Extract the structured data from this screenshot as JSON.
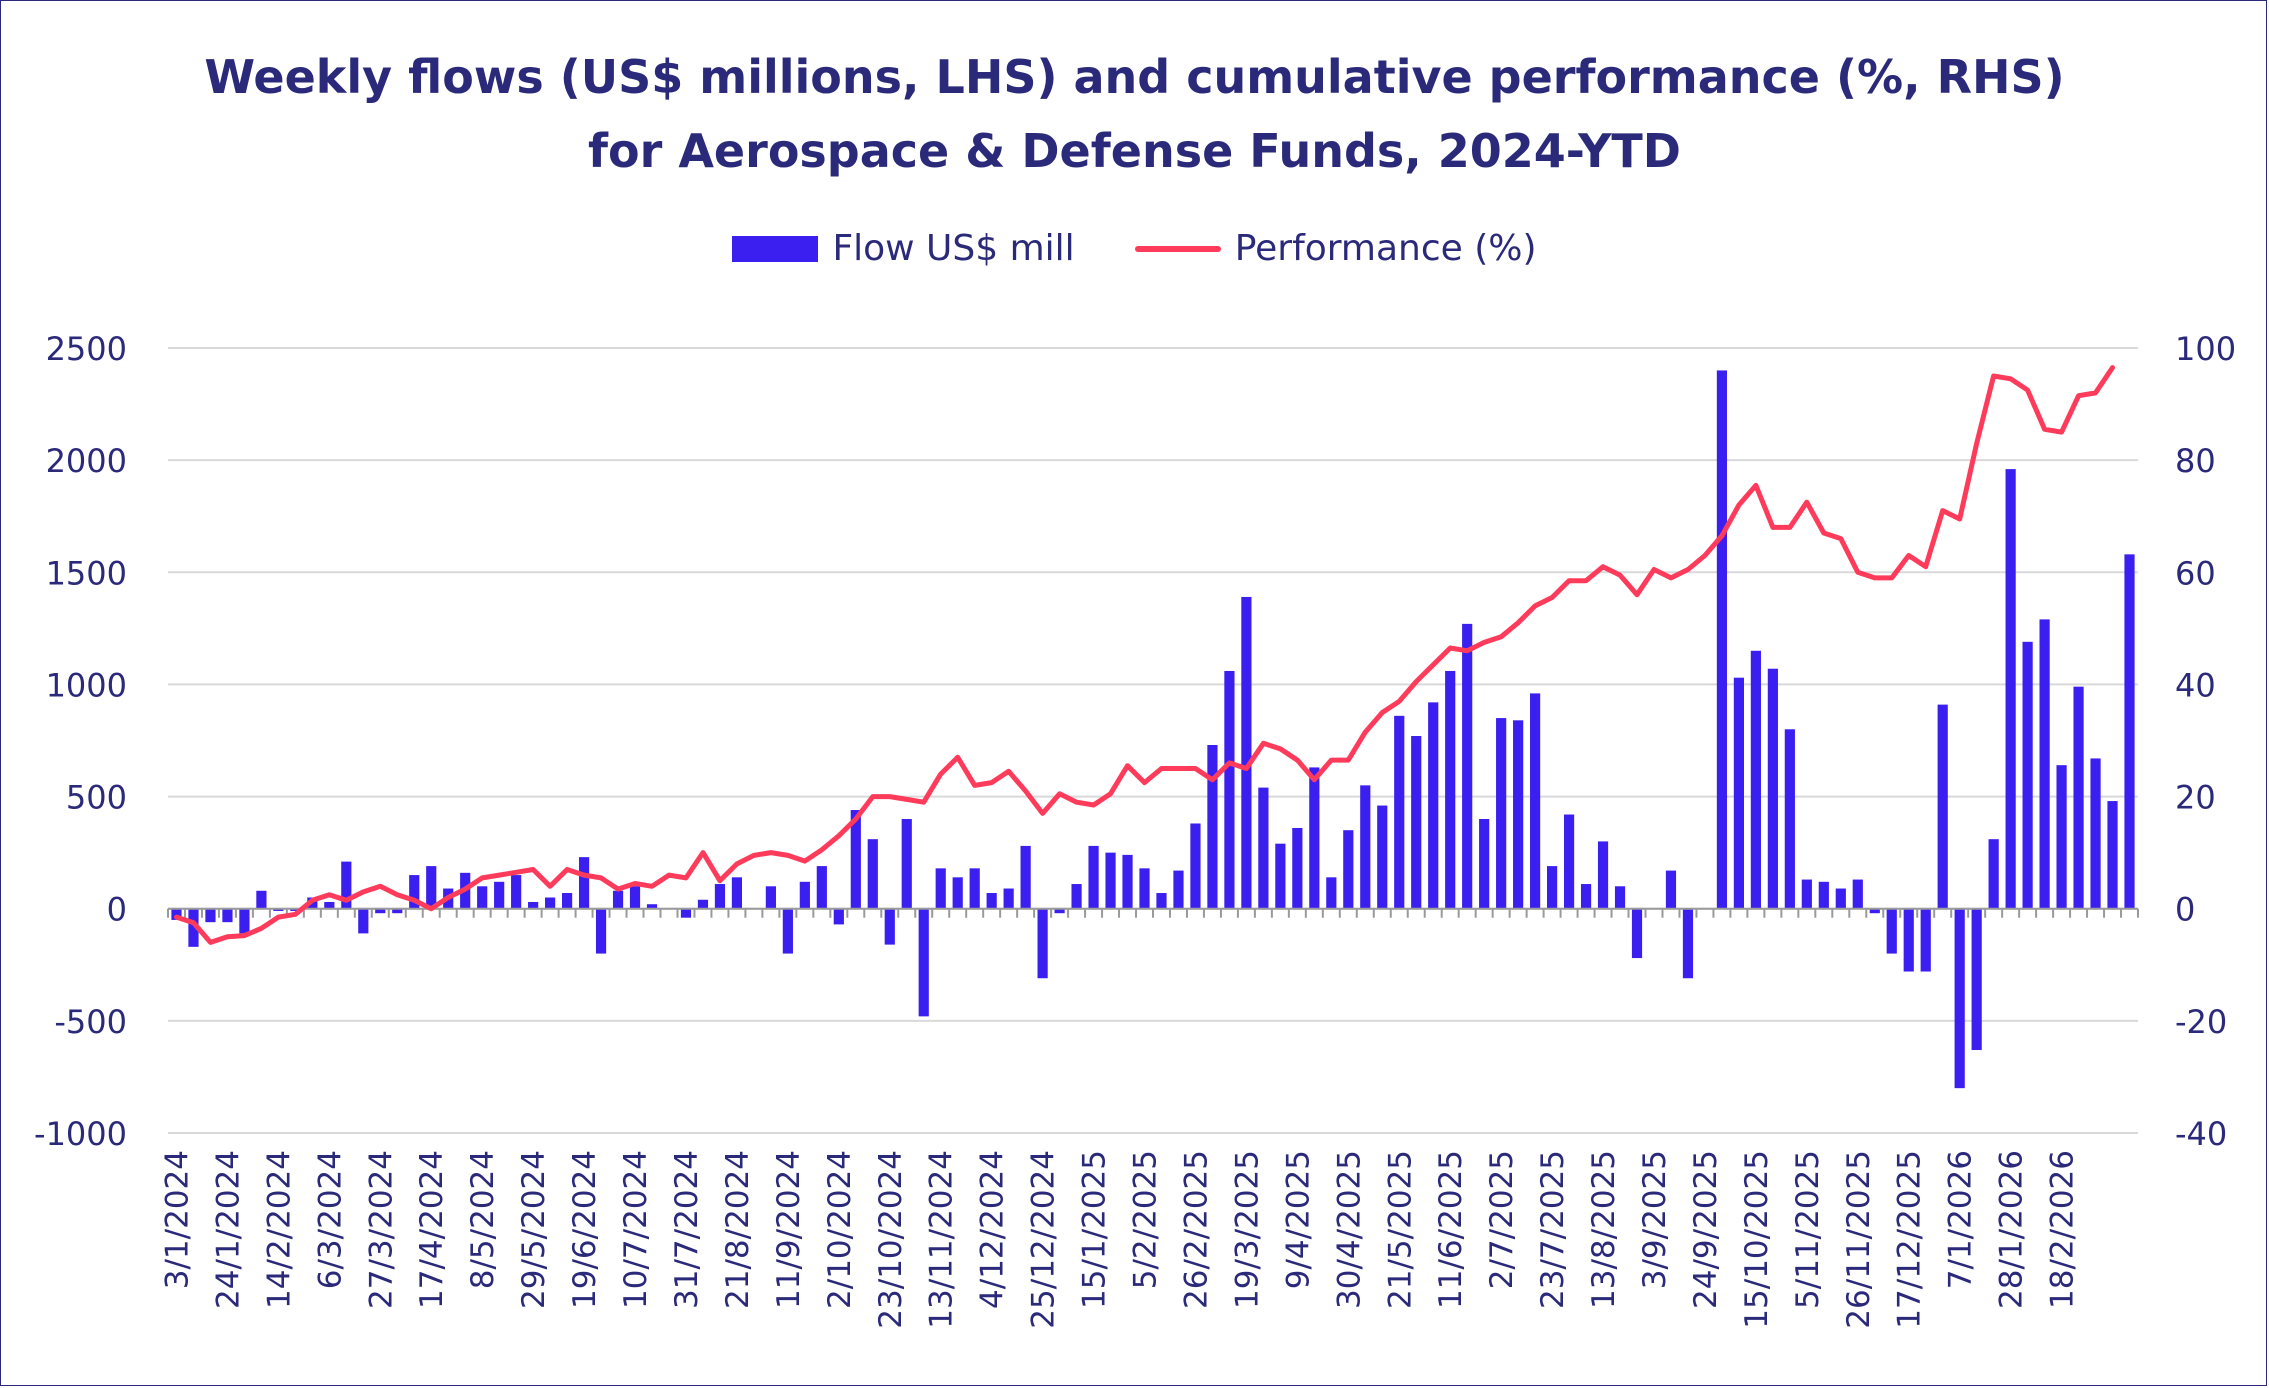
{
  "title_line1": "Weekly flows (US$ millions, LHS) and cumulative performance (%, RHS)",
  "title_line2": "for Aerospace & Defense Funds, 2024-YTD",
  "legend": {
    "bars_label": "Flow US$ mill",
    "line_label": "Performance (%)"
  },
  "colors": {
    "bars": "#3a1ff0",
    "line": "#ff3b5c",
    "text": "#2b2a7a",
    "grid": "#d9d9d9"
  },
  "chart_data": {
    "type": "bar+line",
    "x_tick_labels": [
      "3/1/2024",
      "24/1/2024",
      "14/2/2024",
      "6/3/2024",
      "27/3/2024",
      "17/4/2024",
      "8/5/2024",
      "29/5/2024",
      "19/6/2024",
      "10/7/2024",
      "31/7/2024",
      "21/8/2024",
      "11/9/2024",
      "2/10/2024",
      "23/10/2024",
      "13/11/2024",
      "4/12/2024",
      "25/12/2024",
      "15/1/2025",
      "5/2/2025",
      "26/2/2025",
      "19/3/2025",
      "9/4/2025",
      "30/4/2025",
      "21/5/2025",
      "11/6/2025",
      "2/7/2025",
      "23/7/2025",
      "13/8/2025",
      "3/9/2025",
      "24/9/2025",
      "15/10/2025",
      "5/11/2025",
      "26/11/2025",
      "17/12/2025",
      "7/1/2026",
      "28/1/2026",
      "18/2/2026"
    ],
    "y_left": {
      "min": -1000,
      "max": 2500,
      "ticks": [
        -1000,
        -500,
        0,
        500,
        1000,
        1500,
        2000,
        2500
      ]
    },
    "y_right": {
      "min": -40,
      "max": 100,
      "ticks": [
        -40,
        -20,
        0,
        20,
        40,
        60,
        80,
        100
      ]
    },
    "gridlines": true,
    "legend_position": "top",
    "series": [
      {
        "name": "Flow US$ mill",
        "type": "bar",
        "axis": "left",
        "values": [
          -50,
          -170,
          -60,
          -60,
          -110,
          80,
          -10,
          -10,
          50,
          30,
          210,
          -110,
          -20,
          -20,
          150,
          190,
          90,
          160,
          100,
          120,
          150,
          30,
          50,
          70,
          230,
          -200,
          80,
          100,
          20,
          0,
          -40,
          40,
          110,
          140,
          0,
          100,
          -200,
          120,
          190,
          -70,
          440,
          310,
          -160,
          400,
          -480,
          180,
          140,
          180,
          70,
          90,
          280,
          -310,
          -20,
          110,
          280,
          250,
          240,
          180,
          70,
          170,
          380,
          730,
          1060,
          1390,
          540,
          290,
          360,
          630,
          140,
          350,
          550,
          460,
          860,
          770,
          920,
          1060,
          1270,
          400,
          850,
          840,
          960,
          190,
          420,
          110,
          300,
          100,
          -220,
          0,
          170,
          -310,
          0,
          2400,
          1030,
          1150,
          1070,
          800,
          130,
          120,
          90,
          130,
          -20,
          -200,
          -280,
          -280,
          910,
          -800,
          -630,
          310,
          1960,
          1190,
          1290,
          640,
          990,
          670,
          480,
          1580
        ]
      },
      {
        "name": "Performance (%)",
        "type": "line",
        "axis": "right",
        "values": [
          -1.5,
          -2.5,
          -6.0,
          -5.0,
          -4.8,
          -3.5,
          -1.5,
          -1.0,
          1.5,
          2.5,
          1.5,
          3.0,
          4.0,
          2.5,
          1.5,
          0.0,
          2.0,
          3.5,
          5.5,
          6.0,
          6.5,
          7.0,
          4.0,
          7.0,
          6.0,
          5.5,
          3.5,
          4.5,
          4.0,
          6.0,
          5.5,
          10.0,
          5.0,
          8.0,
          9.5,
          10.0,
          9.5,
          8.5,
          10.5,
          13.0,
          16.0,
          20.0,
          20.0,
          19.5,
          19.0,
          24.0,
          27.0,
          22.0,
          22.5,
          24.5,
          21.0,
          17.0,
          20.5,
          19.0,
          18.5,
          20.5,
          25.5,
          22.5,
          25.0,
          25.0,
          25.0,
          23.0,
          26.0,
          25.0,
          29.5,
          28.5,
          26.5,
          23.0,
          26.5,
          26.5,
          31.5,
          35.0,
          37.0,
          40.5,
          43.5,
          46.5,
          46.0,
          47.5,
          48.5,
          51.0,
          54.0,
          55.5,
          58.5,
          58.5,
          61.0,
          59.5,
          56.0,
          60.5,
          59.0,
          60.5,
          63.0,
          66.5,
          72.0,
          75.5,
          68.0,
          68.0,
          72.5,
          67.0,
          66.0,
          60.0,
          59.0,
          59.0,
          63.0,
          61.0,
          71.0,
          69.5,
          83.0,
          95.0,
          94.5,
          92.5,
          85.5,
          85.0,
          91.5,
          92.0,
          96.5
        ]
      }
    ]
  }
}
